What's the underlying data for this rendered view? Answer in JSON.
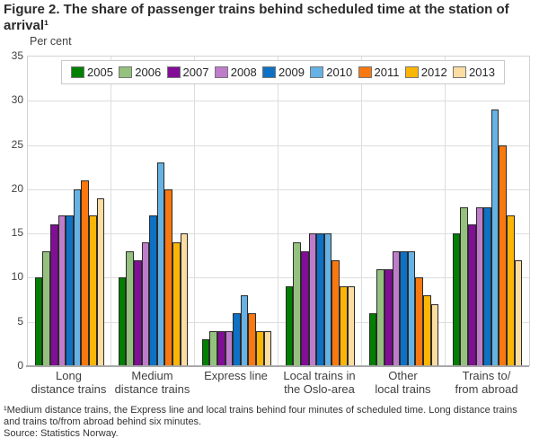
{
  "title": {
    "line1": "Figure 2. The share of passenger trains behind scheduled time at the station of",
    "line2": "arrival¹"
  },
  "footnotes": {
    "line1": "¹Medium distance trains, the Express line and local trains behind four minutes of scheduled time. Long distance trains",
    "line2": "and trains to/from abroad behind six minutes.",
    "source": "Source: Statistics Norway."
  },
  "colors": {
    "bar_border": "#2b2b2b",
    "gridline": "#dddddd",
    "axis_line": "#a8a8a8"
  },
  "chart_data": {
    "type": "bar",
    "title": "Figure 2. The share of passenger trains behind scheduled time at the station of arrival¹",
    "xlabel": "",
    "ylabel": "Per cent",
    "ylim": [
      0,
      35
    ],
    "yticks": [
      0,
      5,
      10,
      15,
      20,
      25,
      30,
      35
    ],
    "grid": true,
    "legend_position": "top",
    "categories": [
      {
        "label": "Long distance trains",
        "lines": [
          "Long",
          "distance trains"
        ]
      },
      {
        "label": "Medium distance trains",
        "lines": [
          "Medium",
          "distance trains"
        ]
      },
      {
        "label": "Express line",
        "lines": [
          "Express line"
        ]
      },
      {
        "label": "Local trains in the Oslo-area",
        "lines": [
          "Local trains in",
          "the Oslo-area"
        ]
      },
      {
        "label": "Other local trains",
        "lines": [
          "Other",
          "local trains"
        ]
      },
      {
        "label": "Trains to/from abroad",
        "lines": [
          "Trains to/",
          "from abroad"
        ]
      }
    ],
    "series": [
      {
        "name": "2005",
        "color": "#008000",
        "values": [
          10,
          10,
          3,
          9,
          6,
          15
        ]
      },
      {
        "name": "2006",
        "color": "#95c17e",
        "values": [
          13,
          13,
          4,
          14,
          11,
          18
        ]
      },
      {
        "name": "2007",
        "color": "#820d97",
        "values": [
          16,
          12,
          4,
          13,
          11,
          16
        ]
      },
      {
        "name": "2008",
        "color": "#be7dcb",
        "values": [
          17,
          14,
          4,
          15,
          13,
          18
        ]
      },
      {
        "name": "2009",
        "color": "#0d71c5",
        "values": [
          17,
          17,
          6,
          15,
          13,
          18
        ]
      },
      {
        "name": "2010",
        "color": "#66b2e4",
        "values": [
          20,
          23,
          8,
          15,
          13,
          29
        ]
      },
      {
        "name": "2011",
        "color": "#f9780f",
        "values": [
          21,
          20,
          6,
          12,
          10,
          25
        ]
      },
      {
        "name": "2012",
        "color": "#fbb605",
        "values": [
          17,
          14,
          4,
          9,
          8,
          17
        ]
      },
      {
        "name": "2013",
        "color": "#fbdda2",
        "values": [
          19,
          15,
          4,
          9,
          7,
          12
        ]
      }
    ]
  }
}
